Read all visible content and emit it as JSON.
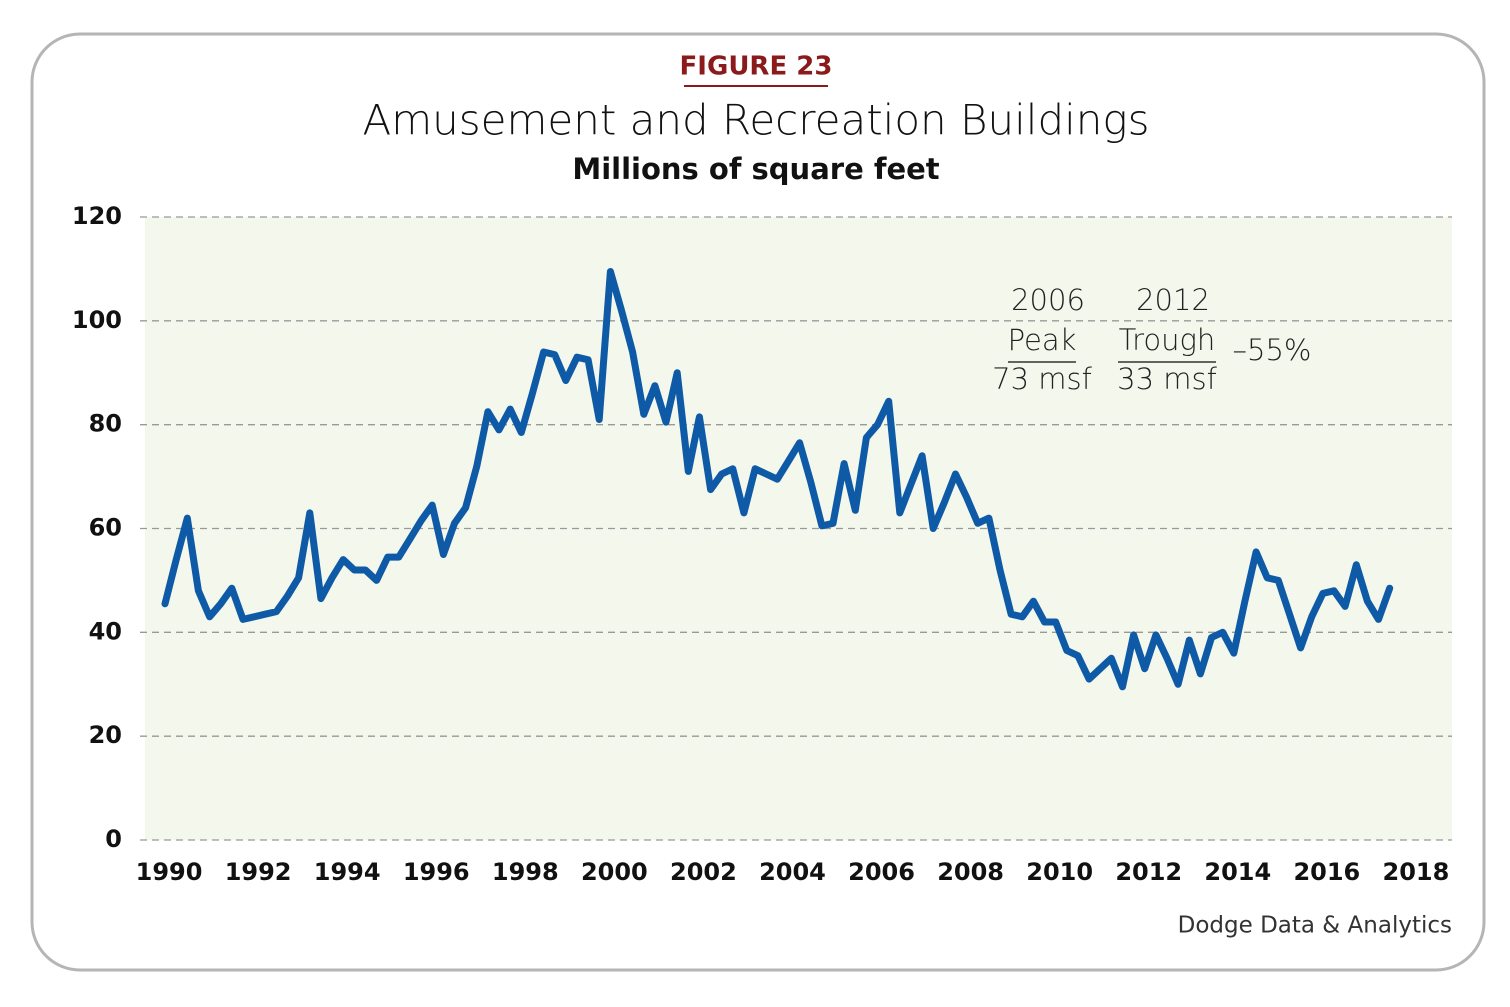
{
  "chart_data": {
    "type": "line",
    "figure_label": "FIGURE 23",
    "title": "Amusement and Recreation Buildings",
    "subtitle": "Millions of square feet",
    "source": "Dodge Data & Analytics",
    "annotations": [
      "2006",
      "Peak",
      "73 msf",
      "2012",
      "Trough",
      "33 msf",
      "–55%"
    ],
    "x": [
      1990,
      1990.25,
      1990.5,
      1990.75,
      1991,
      1991.25,
      1991.5,
      1991.75,
      1992,
      1992.25,
      1992.5,
      1992.75,
      1993,
      1993.25,
      1993.5,
      1993.75,
      1994,
      1994.25,
      1994.5,
      1994.75,
      1995,
      1995.25,
      1995.5,
      1995.75,
      1996,
      1996.25,
      1996.5,
      1996.75,
      1997,
      1997.25,
      1997.5,
      1997.75,
      1998,
      1998.25,
      1998.5,
      1998.75,
      1999,
      1999.25,
      1999.5,
      1999.75,
      2000,
      2000.25,
      2000.5,
      2000.75,
      2001,
      2001.25,
      2001.5,
      2001.75,
      2002,
      2002.25,
      2002.5,
      2002.75,
      2003,
      2003.25,
      2003.5,
      2003.75,
      2004,
      2004.25,
      2004.5,
      2004.75,
      2005,
      2005.25,
      2005.5,
      2005.75,
      2006,
      2006.25,
      2006.5,
      2006.75,
      2007,
      2007.25,
      2007.5,
      2007.75,
      2008,
      2008.25,
      2008.5,
      2008.75,
      2009,
      2009.25,
      2009.5,
      2009.75,
      2010,
      2010.25,
      2010.5,
      2010.75,
      2011,
      2011.25,
      2011.5,
      2011.75,
      2012,
      2012.25,
      2012.5,
      2012.75,
      2013,
      2013.25,
      2013.5,
      2013.75,
      2014,
      2014.25,
      2014.5,
      2014.75,
      2015,
      2015.25,
      2015.5,
      2015.75,
      2016,
      2016.25,
      2016.5,
      2016.75,
      2017,
      2017.25,
      2017.5
    ],
    "series": [
      {
        "name": "Amusement and Recreation Buildings",
        "color": "#0f5aa6",
        "values": [
          45.5,
          54,
          62,
          48,
          43,
          45.5,
          48.5,
          42.5,
          43,
          43.5,
          44,
          47,
          50.5,
          63,
          46.5,
          50.5,
          54,
          52,
          52,
          50,
          54.5,
          54.5,
          58,
          61.5,
          64.5,
          55,
          61,
          64,
          72,
          82.5,
          79,
          83,
          78.5,
          86,
          94,
          93.5,
          88.5,
          93,
          92.5,
          81,
          109.5,
          102,
          94,
          82,
          87.5,
          80.5,
          90,
          71,
          81.5,
          67.5,
          70.5,
          71.5,
          63,
          71.5,
          70.5,
          69.5,
          73,
          76.5,
          69,
          60.5,
          61,
          72.5,
          63.5,
          77.5,
          80,
          84.5,
          63,
          68.5,
          74,
          60,
          65,
          70.5,
          66,
          61,
          62,
          52,
          43.5,
          43,
          46,
          42,
          42,
          36.5,
          35.5,
          31,
          33,
          35,
          29.5,
          39.5,
          33,
          39.5,
          35,
          30,
          38.5,
          32,
          39,
          40,
          36,
          46,
          55.5,
          50.5,
          50,
          43.5,
          37,
          43,
          47.5,
          48,
          45,
          53,
          46,
          42.5,
          48.5
        ]
      }
    ],
    "xlim": [
      1989.55,
      2018.9
    ],
    "xticks": [
      1990,
      1992,
      1994,
      1996,
      1998,
      2000,
      2002,
      2004,
      2006,
      2008,
      2010,
      2012,
      2014,
      2016,
      2018
    ],
    "ylim": [
      0,
      120
    ],
    "yticks": [
      0,
      20,
      40,
      60,
      80,
      100,
      120
    ],
    "grid": true
  }
}
